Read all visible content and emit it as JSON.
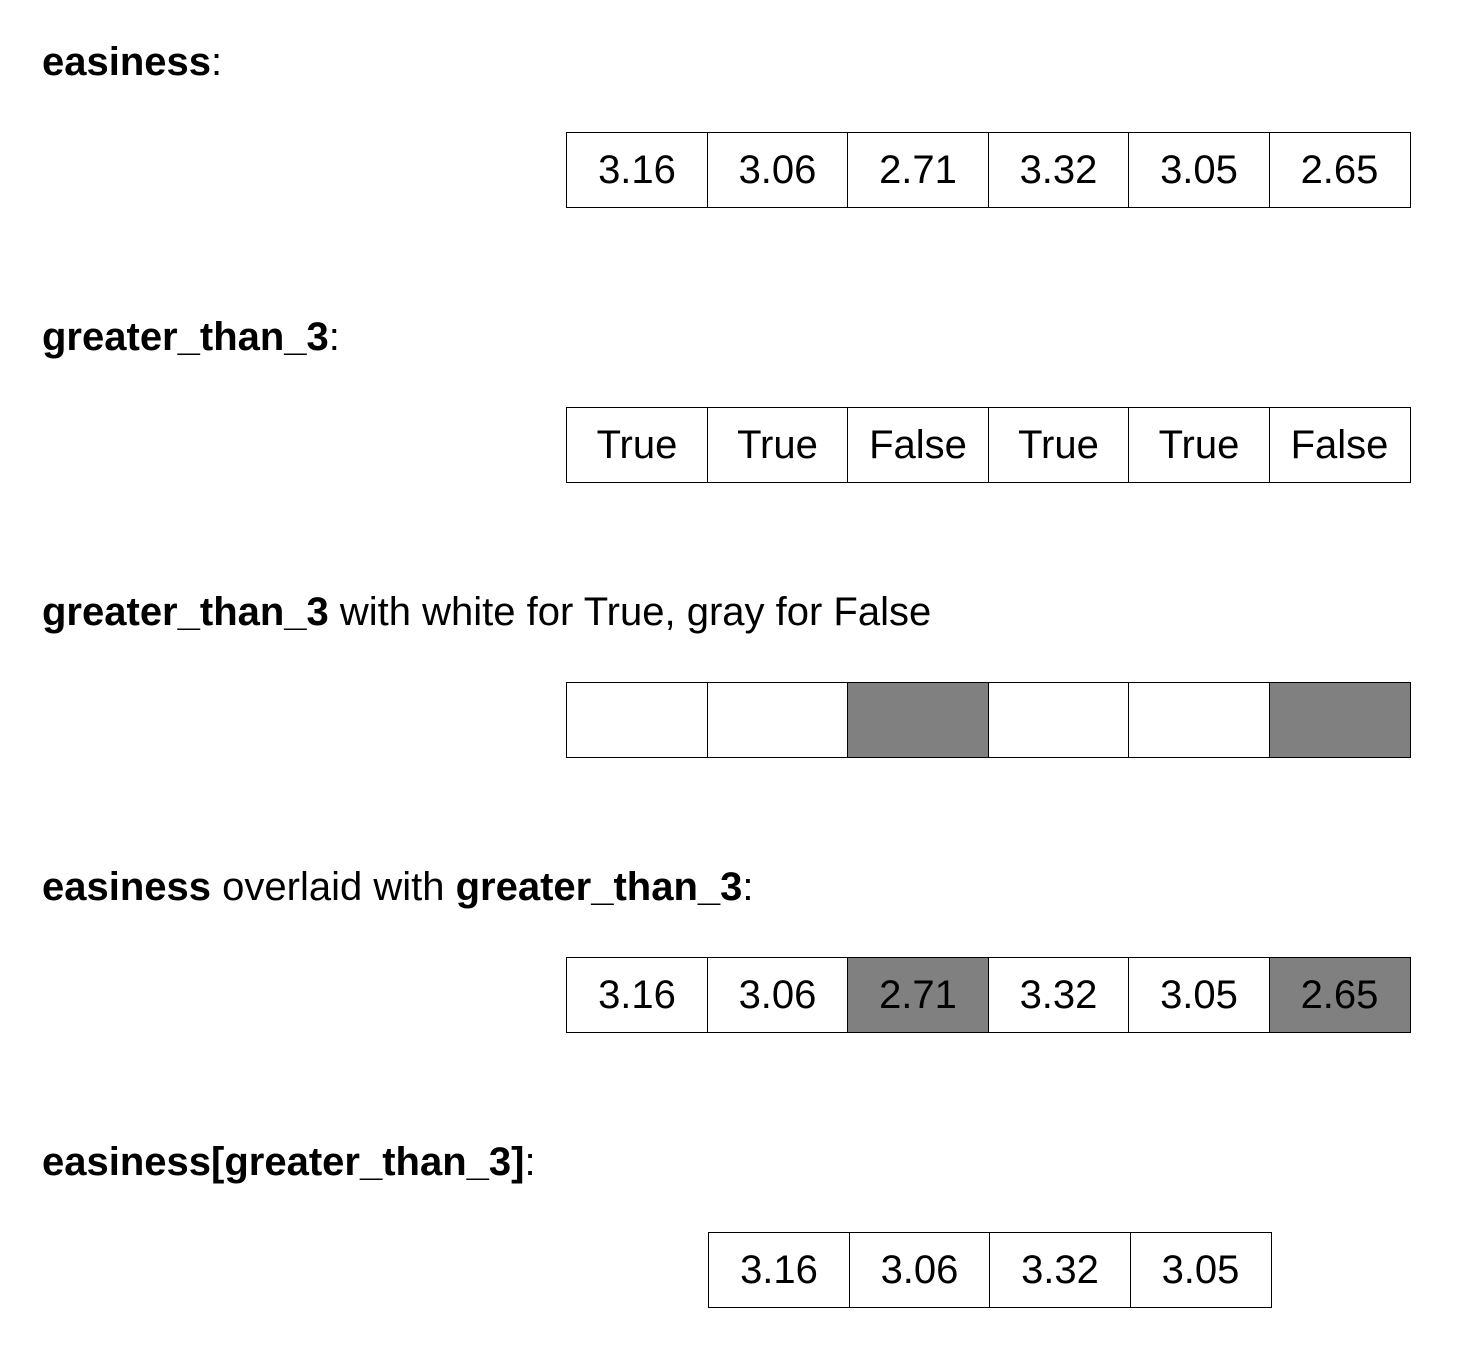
{
  "sections": [
    {
      "heading_bold": "easiness",
      "heading_suffix": ":",
      "cells": [
        "3.16",
        "3.06",
        "2.71",
        "3.32",
        "3.05",
        "2.65"
      ],
      "mask": [
        true,
        true,
        true,
        true,
        true,
        true
      ]
    },
    {
      "heading_bold": "greater_than_3",
      "heading_suffix": ":",
      "cells": [
        "True",
        "True",
        "False",
        "True",
        "True",
        "False"
      ],
      "mask": [
        true,
        true,
        true,
        true,
        true,
        true
      ]
    },
    {
      "heading_bold": "greater_than_3",
      "heading_suffix": " with white for True, gray for False",
      "cells": [
        "",
        "",
        "",
        "",
        "",
        ""
      ],
      "mask": [
        true,
        true,
        false,
        true,
        true,
        false
      ]
    },
    {
      "heading_bold": "easiness",
      "heading_middle": " overlaid with ",
      "heading_bold2": "greater_than_3",
      "heading_suffix": ":",
      "cells": [
        "3.16",
        "3.06",
        "2.71",
        "3.32",
        "3.05",
        "2.65"
      ],
      "mask": [
        true,
        true,
        false,
        true,
        true,
        false
      ]
    },
    {
      "heading_bold": "easiness[greater_than_3]",
      "heading_suffix": ":",
      "cells": [
        "3.16",
        "3.06",
        "3.32",
        "3.05"
      ],
      "mask": [
        true,
        true,
        true,
        true
      ]
    }
  ],
  "colors": {
    "true_fill": "#ffffff",
    "false_fill": "#808080"
  }
}
